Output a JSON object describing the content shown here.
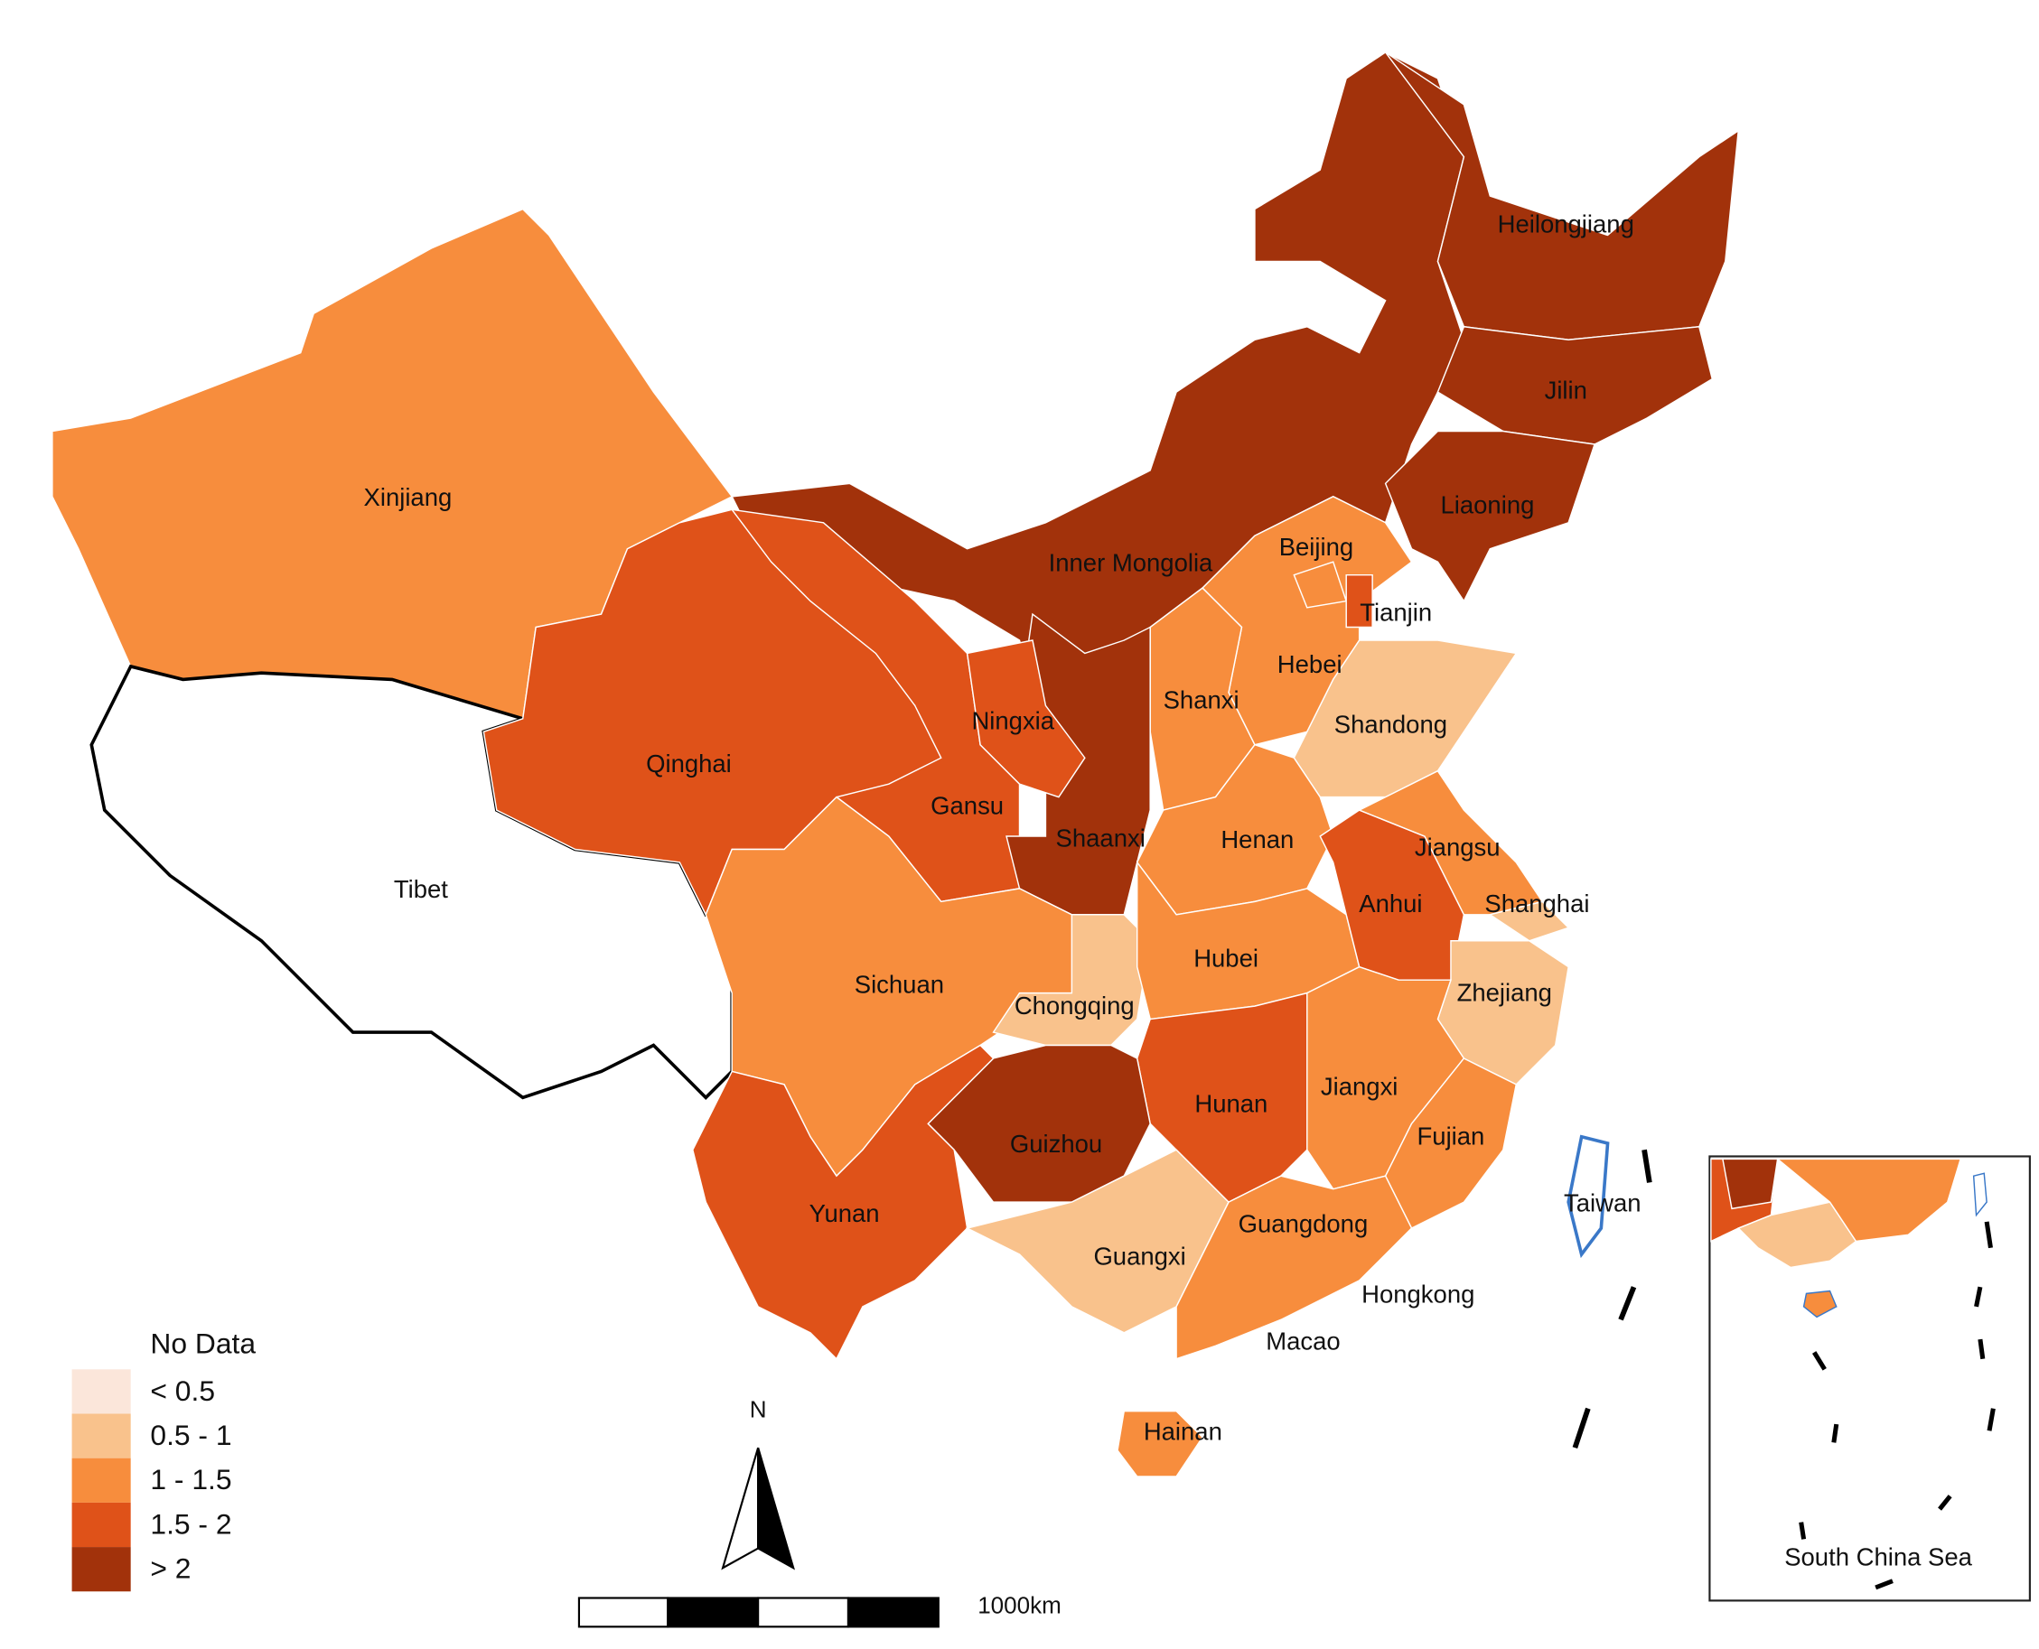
{
  "legend": {
    "items": [
      {
        "label": "No Data",
        "color": "#ffffff"
      },
      {
        "label": "< 0.5",
        "color": "#fbe6da"
      },
      {
        "label": "0.5 - 1",
        "color": "#f9c28c"
      },
      {
        "label": "1 - 1.5",
        "color": "#f78d3d"
      },
      {
        "label": "1.5 - 2",
        "color": "#df5219"
      },
      {
        "label": "> 2",
        "color": "#a2320b"
      }
    ]
  },
  "regions": [
    {
      "name": "Xinjiang",
      "class": 3
    },
    {
      "name": "Tibet",
      "class": 0
    },
    {
      "name": "Inner Mongolia",
      "class": 5
    },
    {
      "name": "Gansu",
      "class": 4
    },
    {
      "name": "Qinghai",
      "class": 4
    },
    {
      "name": "Heilongjiang",
      "class": 5
    },
    {
      "name": "Jilin",
      "class": 5
    },
    {
      "name": "Liaoning",
      "class": 5
    },
    {
      "name": "Hebei",
      "class": 3
    },
    {
      "name": "Beijing",
      "class": 3
    },
    {
      "name": "Tianjin",
      "class": 4
    },
    {
      "name": "Shanxi",
      "class": 3
    },
    {
      "name": "Shandong",
      "class": 2
    },
    {
      "name": "Henan",
      "class": 3
    },
    {
      "name": "Shaanxi",
      "class": 5
    },
    {
      "name": "Ningxia",
      "class": 4
    },
    {
      "name": "Sichuan",
      "class": 3
    },
    {
      "name": "Chongqing",
      "class": 2
    },
    {
      "name": "Hubei",
      "class": 3
    },
    {
      "name": "Anhui",
      "class": 4
    },
    {
      "name": "Jiangsu",
      "class": 3
    },
    {
      "name": "Shanghai",
      "class": 2
    },
    {
      "name": "Zhejiang",
      "class": 2
    },
    {
      "name": "Jiangxi",
      "class": 3
    },
    {
      "name": "Fujian",
      "class": 3
    },
    {
      "name": "Hunan",
      "class": 4
    },
    {
      "name": "Guizhou",
      "class": 5
    },
    {
      "name": "Yunan",
      "class": 4
    },
    {
      "name": "Guangxi",
      "class": 2
    },
    {
      "name": "Guangdong",
      "class": 3
    },
    {
      "name": "Hainan",
      "class": 3
    },
    {
      "name": "Taiwan",
      "class": 0
    }
  ],
  "other_labels": [
    "Hongkong",
    "Macao"
  ],
  "north_arrow": {
    "label": "N"
  },
  "scale_bar": {
    "label": "1000km"
  },
  "inset": {
    "title": "South China Sea"
  }
}
